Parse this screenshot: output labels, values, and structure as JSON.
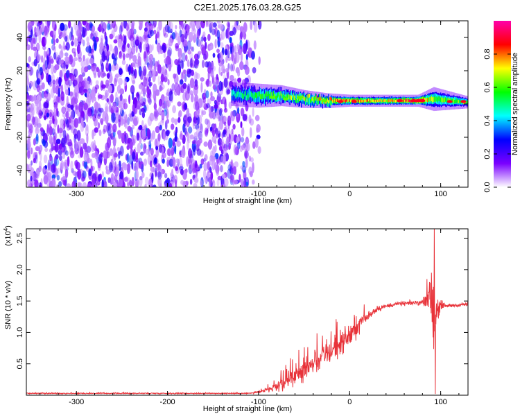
{
  "title": "C2E1.2025.176.03.28.G25",
  "chart_data": [
    {
      "type": "heatmap",
      "xlabel": "Height of straight line (km)",
      "ylabel": "Frequency (Hz)",
      "xlim": [
        -355,
        130
      ],
      "ylim": [
        -50,
        50
      ],
      "xticks": [
        -300,
        -200,
        -100,
        0,
        100
      ],
      "yticks": [
        -40,
        -20,
        0,
        20,
        40
      ],
      "xtick_labels": [
        "-300",
        "-200",
        "-100",
        "0",
        "100"
      ],
      "ytick_labels": [
        "-40",
        "-20",
        "0",
        "20",
        "40"
      ],
      "colorbar": {
        "label": "Normalized spectral amplitude",
        "range": [
          0,
          1
        ],
        "ticks": [
          0.0,
          0.2,
          0.4,
          0.6,
          0.8
        ],
        "tick_labels": [
          "0.0",
          "0.2",
          "0.4",
          "0.6",
          "0.8"
        ],
        "colors": [
          "#ffffff",
          "#7a00ff",
          "#0000ff",
          "#00ffff",
          "#00ff00",
          "#ffff00",
          "#ff0000",
          "#ff00aa"
        ]
      },
      "noise_region": {
        "x": [
          -355,
          -110
        ],
        "amplitude": [
          0.05,
          0.25
        ]
      },
      "signal_band": [
        {
          "x": -130,
          "center_hz": 6,
          "width_hz": 8,
          "amplitude": 0.45
        },
        {
          "x": -100,
          "center_hz": 5,
          "width_hz": 8,
          "amplitude": 0.55
        },
        {
          "x": -75,
          "center_hz": 5,
          "width_hz": 7,
          "amplitude": 0.6
        },
        {
          "x": -50,
          "center_hz": 3,
          "width_hz": 6,
          "amplitude": 0.65
        },
        {
          "x": -25,
          "center_hz": 2,
          "width_hz": 5,
          "amplitude": 0.75
        },
        {
          "x": 0,
          "center_hz": 2,
          "width_hz": 4,
          "amplitude": 0.8
        },
        {
          "x": 40,
          "center_hz": 2,
          "width_hz": 4,
          "amplitude": 0.7
        },
        {
          "x": 75,
          "center_hz": 2,
          "width_hz": 4,
          "amplitude": 0.9
        },
        {
          "x": 92,
          "center_hz": 3,
          "width_hz": 8,
          "amplitude": 0.6
        },
        {
          "x": 130,
          "center_hz": 1,
          "width_hz": 4,
          "amplitude": 0.6
        }
      ]
    },
    {
      "type": "line",
      "xlabel": "Height of straight line (km)",
      "ylabel": "SNR (10 * v/v)",
      "ylabel_multiplier": "(x10",
      "ylabel_multiplier_exp": "4",
      "ylabel_multiplier_close": ")",
      "xlim": [
        -355,
        130
      ],
      "ylim": [
        0,
        2.65
      ],
      "xticks": [
        -300,
        -200,
        -100,
        0,
        100
      ],
      "yticks": [
        0.5,
        1.0,
        1.5,
        2.0,
        2.5
      ],
      "xtick_labels": [
        "-300",
        "-200",
        "-100",
        "0",
        "100"
      ],
      "ytick_labels": [
        "0.5",
        "1.0",
        "1.5",
        "2.0",
        "2.5"
      ],
      "series": [
        {
          "color": "#e8333a",
          "envelope": [
            {
              "x": -355,
              "mean": 0.03,
              "noise": 0.02
            },
            {
              "x": -110,
              "mean": 0.03,
              "noise": 0.02
            },
            {
              "x": -95,
              "mean": 0.06,
              "noise": 0.06
            },
            {
              "x": -80,
              "mean": 0.12,
              "noise": 0.15
            },
            {
              "x": -60,
              "mean": 0.3,
              "noise": 0.3
            },
            {
              "x": -40,
              "mean": 0.5,
              "noise": 0.35
            },
            {
              "x": -20,
              "mean": 0.7,
              "noise": 0.35
            },
            {
              "x": 0,
              "mean": 0.95,
              "noise": 0.35
            },
            {
              "x": 15,
              "mean": 1.2,
              "noise": 0.2
            },
            {
              "x": 30,
              "mean": 1.38,
              "noise": 0.1
            },
            {
              "x": 50,
              "mean": 1.45,
              "noise": 0.06
            },
            {
              "x": 80,
              "mean": 1.48,
              "noise": 0.08
            },
            {
              "x": 88,
              "mean": 1.6,
              "noise": 0.35
            },
            {
              "x": 92,
              "mean": 1.3,
              "noise": 1.3
            },
            {
              "x": 96,
              "mean": 1.4,
              "noise": 0.4
            },
            {
              "x": 105,
              "mean": 1.42,
              "noise": 0.06
            },
            {
              "x": 130,
              "mean": 1.45,
              "noise": 0.06
            }
          ],
          "peaks": [
            {
              "x": 93,
              "y": 2.65
            },
            {
              "x": 94,
              "y": 0.02
            },
            {
              "x": 90,
              "y": 1.95
            },
            {
              "x": 85,
              "y": 1.85
            }
          ]
        }
      ]
    }
  ]
}
